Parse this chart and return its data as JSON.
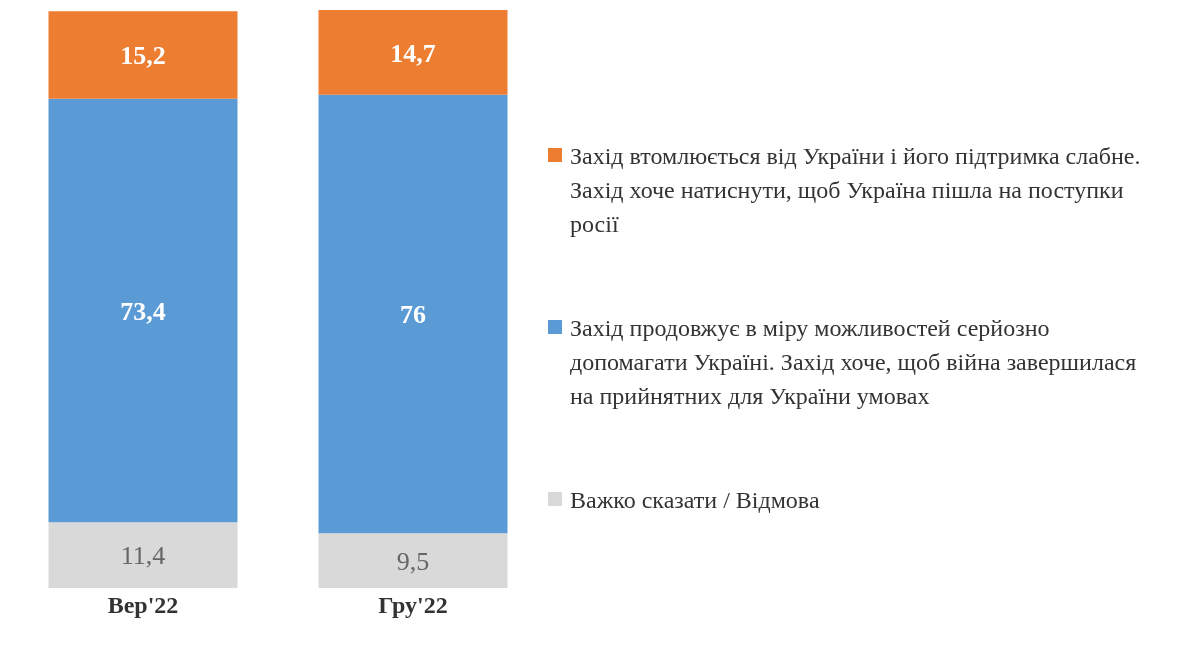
{
  "chart_data": {
    "type": "bar",
    "stacked": true,
    "categories": [
      "Вер'22",
      "Гру'22"
    ],
    "legend": "right",
    "series": [
      {
        "name": "Важко сказати / Відмова",
        "color": "#d9d9d9",
        "values": [
          11.4,
          9.5
        ],
        "value_labels": [
          "11,4",
          "9,5"
        ]
      },
      {
        "name": "Захід продовжує в міру можливостей серйозно допомагати Україні. Захід хоче, щоб війна завершилася на прийнятних для України умовах",
        "color": "#5b9bd5",
        "values": [
          73.4,
          76
        ],
        "value_labels": [
          "73,4",
          "76"
        ]
      },
      {
        "name": "Захід втомлюється від України і його підтримка слабне. Захід хоче натиснути, щоб Україна пішла на поступки росії",
        "color": "#ed7d31",
        "values": [
          15.2,
          14.7
        ],
        "value_labels": [
          "15,2",
          "14,7"
        ]
      }
    ]
  }
}
